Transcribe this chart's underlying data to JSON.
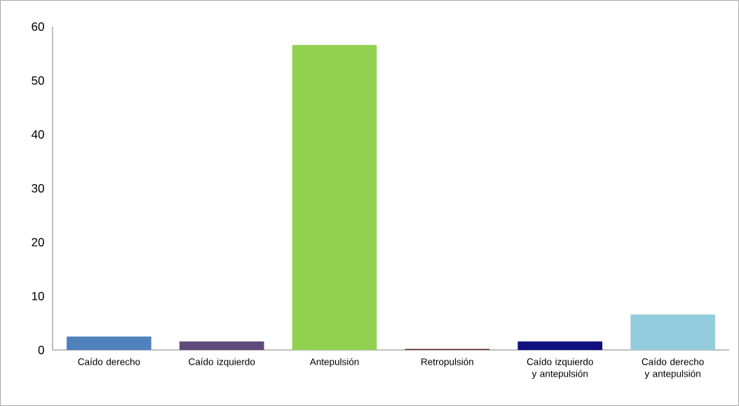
{
  "chart_data": {
    "type": "bar",
    "categories": [
      "Caído derecho",
      "Caído izquierdo",
      "Antepulsión",
      "Retropulsión",
      "Caído izquierdo y antepulsión",
      "Caído derecho y antepulsión"
    ],
    "values": [
      2.5,
      1.6,
      56.6,
      0.2,
      1.6,
      6.6
    ],
    "colors": [
      "#4f81bd",
      "#604a7b",
      "#92d050",
      "#632523",
      "#10107f",
      "#93cddd"
    ],
    "ylim": [
      0,
      60
    ],
    "yticks": [
      0,
      10,
      20,
      30,
      40,
      50,
      60
    ],
    "grid": false
  }
}
